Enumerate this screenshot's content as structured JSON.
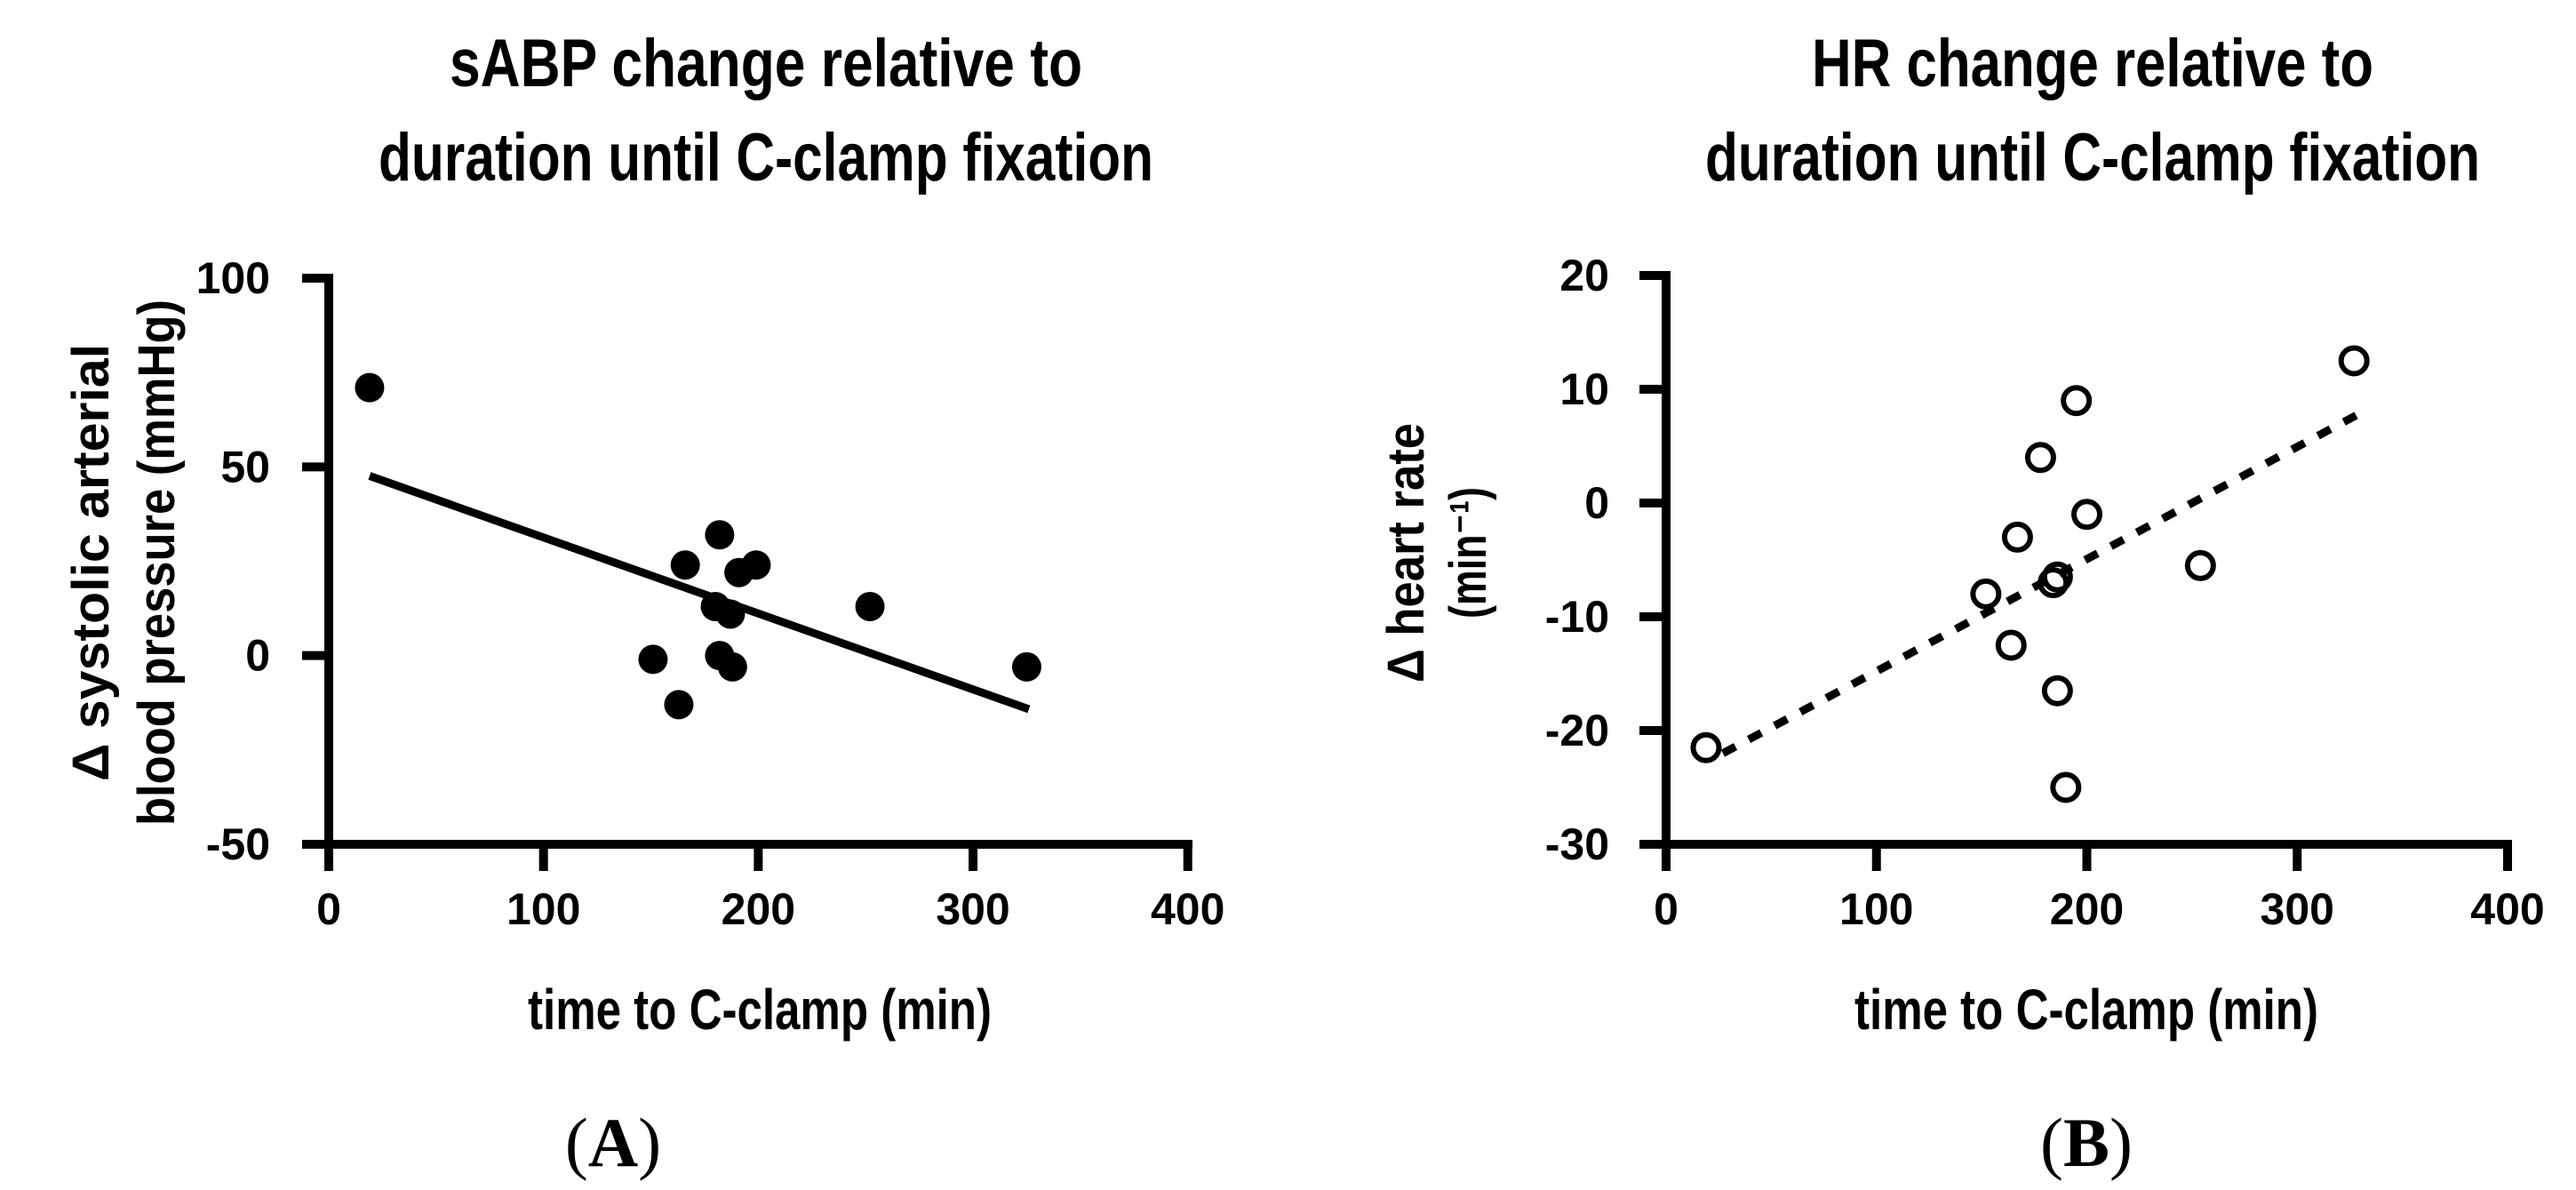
{
  "figure": {
    "background": "#ffffff",
    "ink": "#000000",
    "description": "Two-panel scatter figure"
  },
  "chart_data": [
    {
      "id": "A",
      "type": "scatter",
      "panel_label": {
        "open": "(",
        "letter": "A",
        "close": ")"
      },
      "title_line1": "sABP change relative to",
      "title_line2": "duration until C-clamp fixation",
      "ylabel_line1": "Δ systolic arterial",
      "ylabel_line2": "blood pressure (mmHg)",
      "xlabel": "time to C-clamp (min)",
      "xlim": [
        0,
        400
      ],
      "ylim": [
        -50,
        100
      ],
      "x_ticks": [
        0,
        100,
        200,
        300,
        400
      ],
      "y_ticks": [
        100,
        50,
        0,
        -50
      ],
      "grid": false,
      "legend": null,
      "marker": "filled-circle",
      "trend_style": "solid",
      "points": [
        {
          "x": 19,
          "y": 71
        },
        {
          "x": 151,
          "y": -1
        },
        {
          "x": 163,
          "y": -13
        },
        {
          "x": 166,
          "y": 24
        },
        {
          "x": 180,
          "y": 13
        },
        {
          "x": 182,
          "y": 0
        },
        {
          "x": 182,
          "y": 32
        },
        {
          "x": 187,
          "y": 11
        },
        {
          "x": 188,
          "y": -3
        },
        {
          "x": 191,
          "y": 22
        },
        {
          "x": 199,
          "y": 24
        },
        {
          "x": 252,
          "y": 13
        },
        {
          "x": 325,
          "y": -3
        }
      ],
      "trend": {
        "x1": 19,
        "y1": 47.6,
        "x2": 326,
        "y2": -14.2
      }
    },
    {
      "id": "B",
      "type": "scatter",
      "panel_label": {
        "open": "(",
        "letter": "B",
        "close": ")"
      },
      "title_line1": "HR change relative to",
      "title_line2": "duration until C-clamp fixation",
      "ylabel_line1": "Δ heart rate",
      "ylabel_line2": "(min⁻¹)",
      "xlabel": "time to C-clamp (min)",
      "xlim": [
        0,
        400
      ],
      "ylim": [
        -30,
        20
      ],
      "x_ticks": [
        0,
        100,
        200,
        300,
        400
      ],
      "y_ticks": [
        20,
        10,
        0,
        -10,
        -20,
        -30
      ],
      "grid": false,
      "legend": null,
      "marker": "open-circle",
      "trend_style": "dotted",
      "points": [
        {
          "x": 19,
          "y": -21.5
        },
        {
          "x": 152,
          "y": -8
        },
        {
          "x": 164,
          "y": -12.5
        },
        {
          "x": 167,
          "y": -3
        },
        {
          "x": 178,
          "y": 4
        },
        {
          "x": 184,
          "y": -7
        },
        {
          "x": 186,
          "y": -6.5
        },
        {
          "x": 186,
          "y": -16.5
        },
        {
          "x": 190,
          "y": -25
        },
        {
          "x": 195,
          "y": 9
        },
        {
          "x": 200,
          "y": -1
        },
        {
          "x": 254,
          "y": -5.5
        },
        {
          "x": 327,
          "y": 12.5
        }
      ],
      "trend": {
        "x1": 27,
        "y1": -22.0,
        "x2": 328,
        "y2": 7.7
      }
    }
  ]
}
